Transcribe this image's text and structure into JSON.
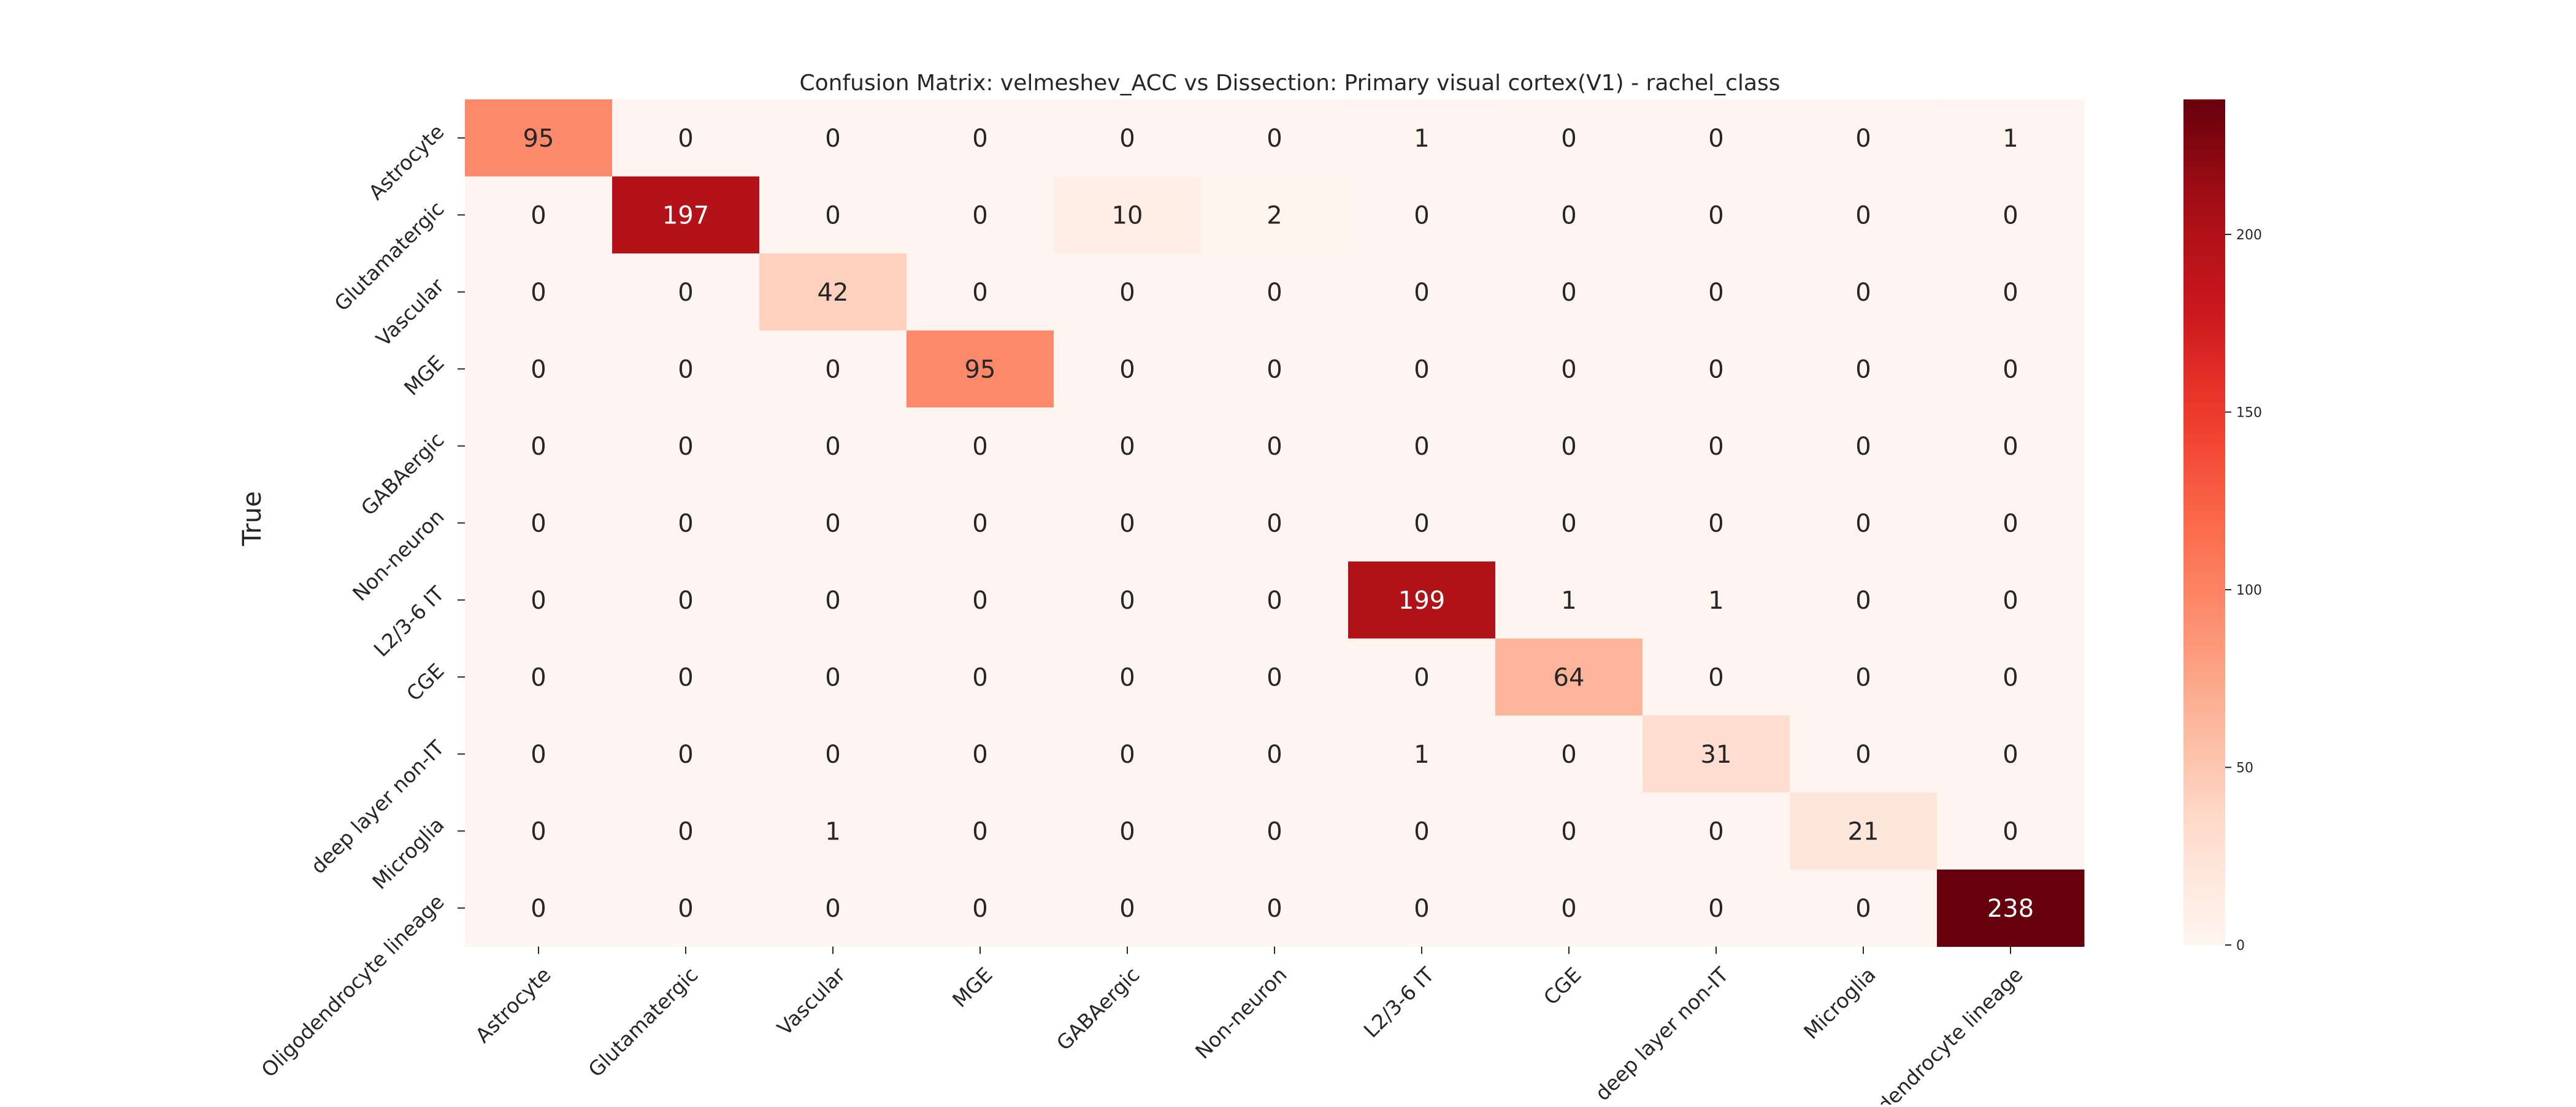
{
  "chart_data": {
    "type": "heatmap",
    "title": "Confusion Matrix: velmeshev_ACC vs Dissection: Primary visual cortex(V1) - rachel_class",
    "xlabel": "",
    "ylabel": "True",
    "row_labels": [
      "Astrocyte",
      "Glutamatergic",
      "Vascular",
      "MGE",
      "GABAergic",
      "Non-neuron",
      "L2/3-6 IT",
      "CGE",
      "deep layer non-IT",
      "Microglia",
      "Oligodendrocyte lineage"
    ],
    "col_labels": [
      "Astrocyte",
      "Glutamatergic",
      "Vascular",
      "MGE",
      "GABAergic",
      "Non-neuron",
      "L2/3-6 IT",
      "CGE",
      "deep layer non-IT",
      "Microglia",
      "Oligodendrocyte lineage"
    ],
    "values": [
      [
        95,
        0,
        0,
        0,
        0,
        0,
        1,
        0,
        0,
        0,
        1
      ],
      [
        0,
        197,
        0,
        0,
        10,
        2,
        0,
        0,
        0,
        0,
        0
      ],
      [
        0,
        0,
        42,
        0,
        0,
        0,
        0,
        0,
        0,
        0,
        0
      ],
      [
        0,
        0,
        0,
        95,
        0,
        0,
        0,
        0,
        0,
        0,
        0
      ],
      [
        0,
        0,
        0,
        0,
        0,
        0,
        0,
        0,
        0,
        0,
        0
      ],
      [
        0,
        0,
        0,
        0,
        0,
        0,
        0,
        0,
        0,
        0,
        0
      ],
      [
        0,
        0,
        0,
        0,
        0,
        0,
        199,
        1,
        1,
        0,
        0
      ],
      [
        0,
        0,
        0,
        0,
        0,
        0,
        0,
        64,
        0,
        0,
        0
      ],
      [
        0,
        0,
        0,
        0,
        0,
        0,
        1,
        0,
        31,
        0,
        0
      ],
      [
        0,
        0,
        1,
        0,
        0,
        0,
        0,
        0,
        0,
        21,
        0
      ],
      [
        0,
        0,
        0,
        0,
        0,
        0,
        0,
        0,
        0,
        0,
        238
      ]
    ],
    "colorscale": "Reds",
    "colorbar": {
      "min": 0,
      "max": 238,
      "ticks": [
        0,
        50,
        100,
        150,
        200
      ]
    }
  }
}
